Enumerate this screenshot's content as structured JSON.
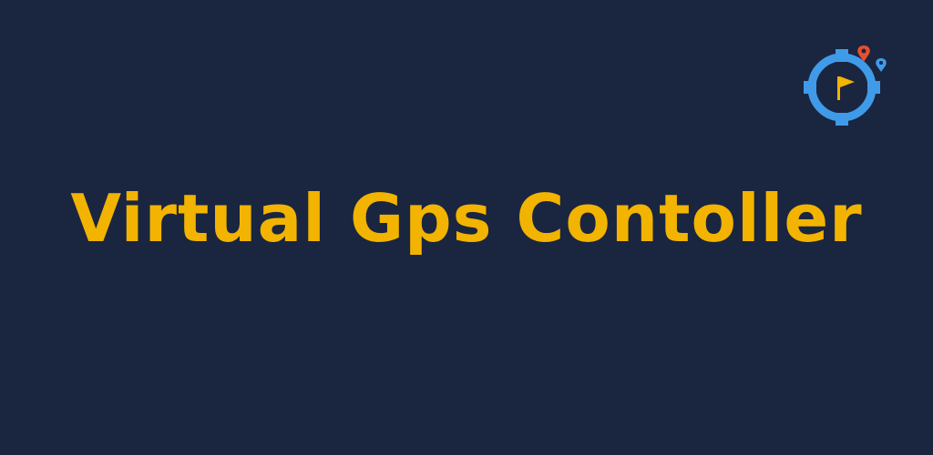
{
  "banner": {
    "title": "Virtual Gps Contoller"
  },
  "logo": {
    "icon": "crosshair-flag-icon",
    "pins": [
      "map-pin-icon",
      "map-pin-icon"
    ]
  },
  "colors": {
    "background": "#1a2540",
    "title": "#f2b400",
    "crosshair": "#3f9be8",
    "flag": "#f2b400",
    "pin_red": "#e4502e",
    "pin_blue": "#3f9be8"
  }
}
